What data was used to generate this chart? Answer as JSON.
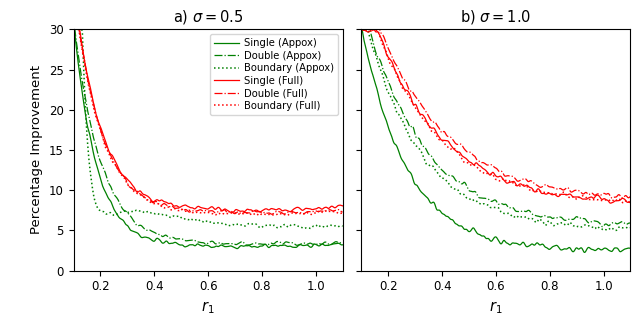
{
  "title_a": "a) $\\sigma = 0.5$",
  "title_b": "b) $\\sigma = 1.0$",
  "xlabel": "$r_1$",
  "ylabel": "Percentage Improvement",
  "ylim_a": [
    0,
    30
  ],
  "ylim_b": [
    0,
    30
  ],
  "xlim_a": [
    0.1,
    1.1
  ],
  "xlim_b": [
    0.1,
    1.1
  ],
  "green_color": "#008000",
  "red_color": "#ff0000",
  "legend_labels": [
    "Single (Appox)",
    "Double (Appox)",
    "Boundary (Appox)",
    "Single (Full)",
    "Double (Full)",
    "Boundary (Full)"
  ],
  "xticks": [
    0.2,
    0.4,
    0.6,
    0.8,
    1.0
  ],
  "yticks": [
    0,
    5,
    10,
    15,
    20,
    25,
    30
  ]
}
